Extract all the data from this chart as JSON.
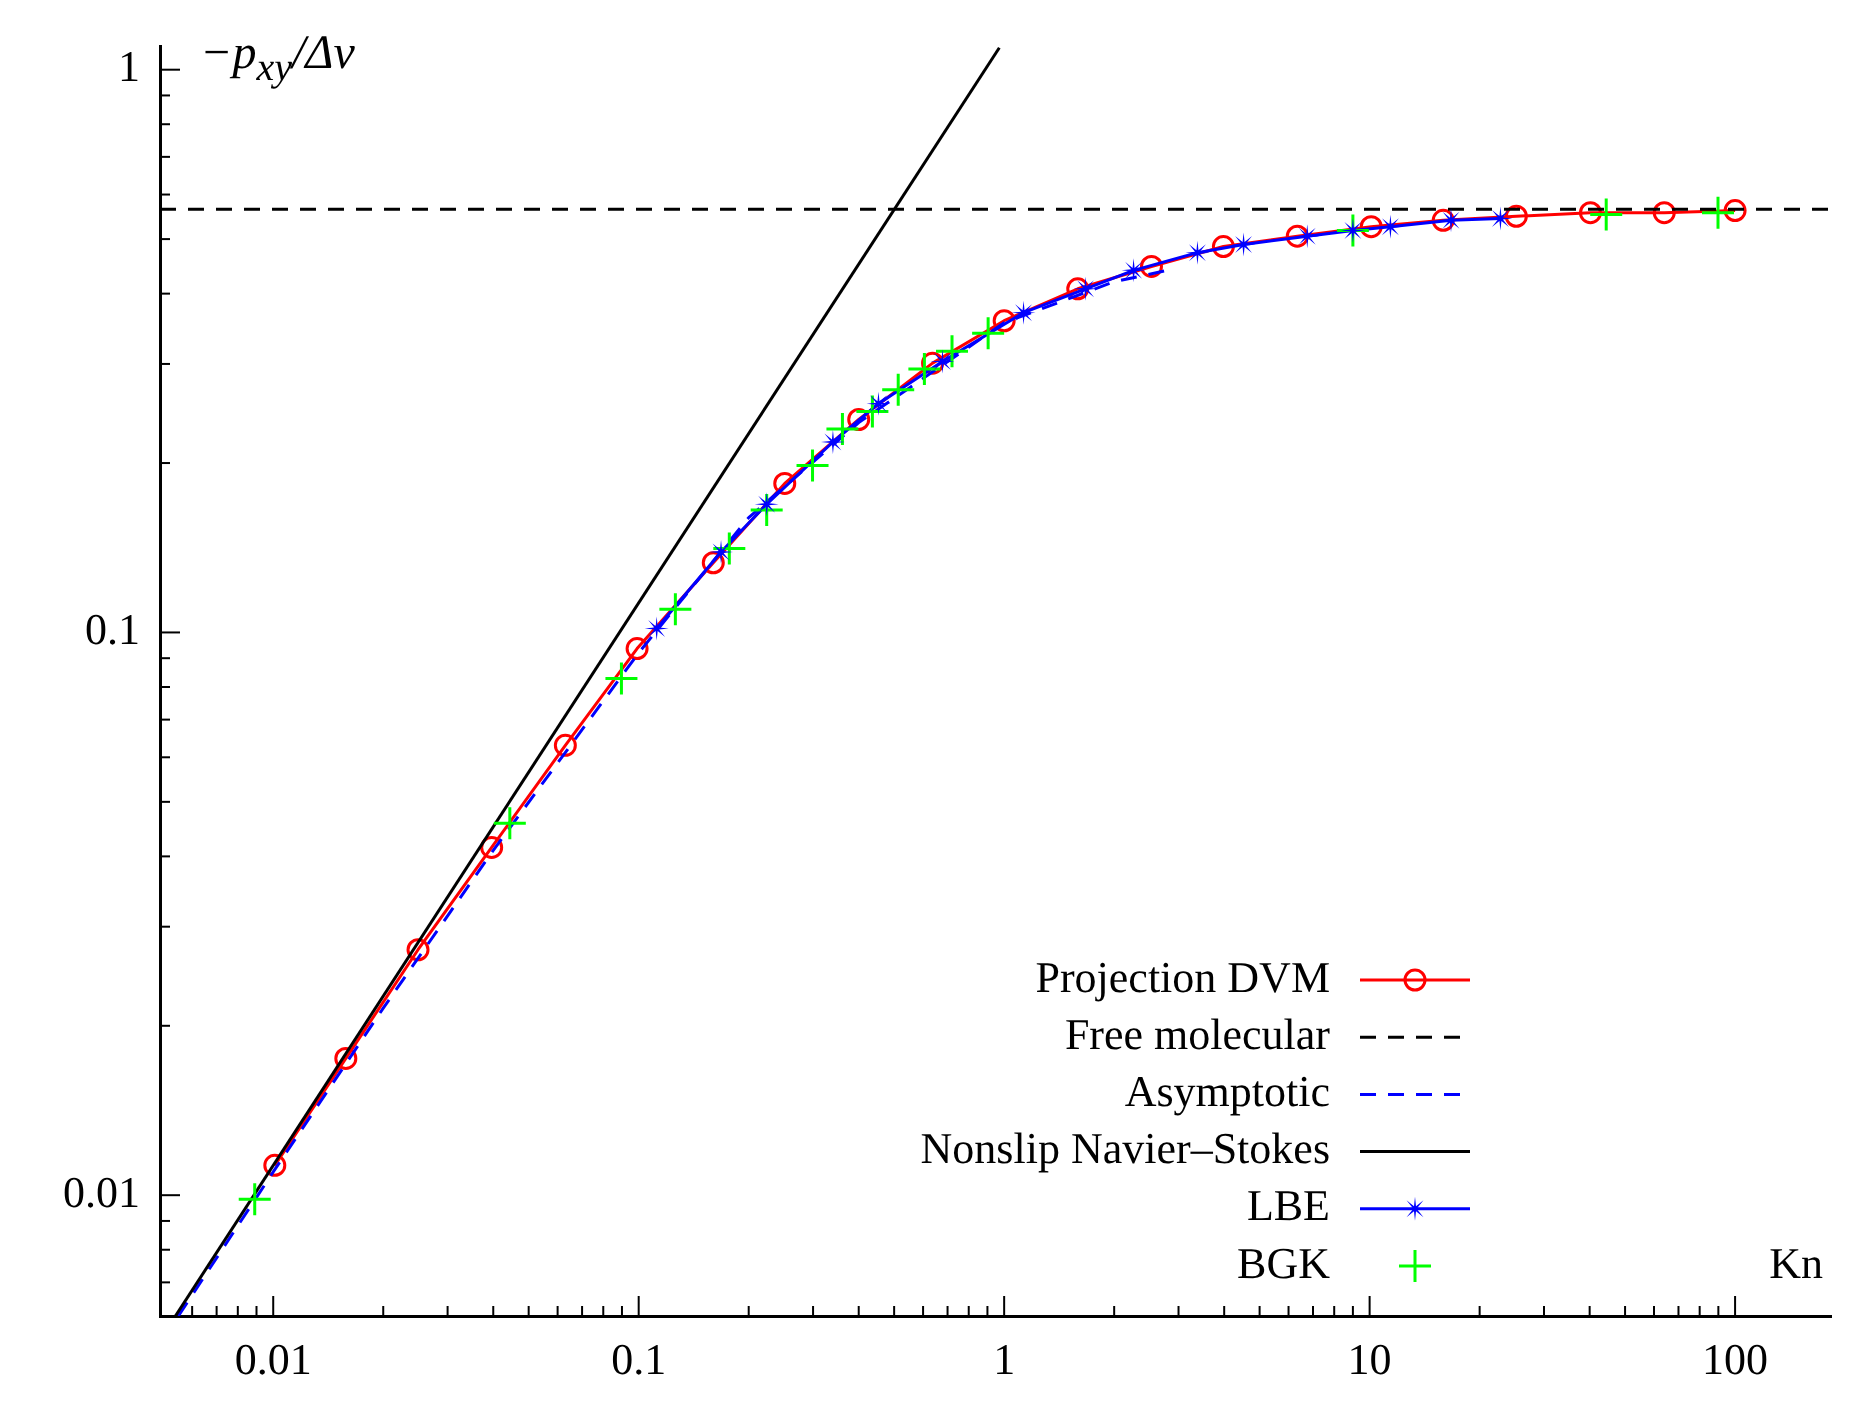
{
  "chart_data": {
    "type": "line",
    "xlabel": "Kn",
    "ylabel": "−p$_{xy}$/Δv",
    "log": "xy",
    "grid": false,
    "legend": "bottom right",
    "xlim": [
      0.0049,
      183
    ],
    "ylim": [
      0.0061,
      1.1
    ],
    "xticks": [
      {
        "value": 0.006,
        "label": null
      },
      {
        "value": 0.007,
        "label": null
      },
      {
        "value": 0.008,
        "label": null
      },
      {
        "value": 0.009,
        "label": null
      },
      0.01,
      {
        "value": 0.02,
        "label": null
      },
      {
        "value": 0.03,
        "label": null
      },
      {
        "value": 0.04,
        "label": null
      },
      {
        "value": 0.05,
        "label": null
      },
      {
        "value": 0.06,
        "label": null
      },
      {
        "value": 0.07,
        "label": null
      },
      {
        "value": 0.08,
        "label": null
      },
      {
        "value": 0.09,
        "label": null
      },
      0.1,
      {
        "value": 0.2,
        "label": null
      },
      {
        "value": 0.3,
        "label": null
      },
      {
        "value": 0.4,
        "label": null
      },
      {
        "value": 0.5,
        "label": null
      },
      {
        "value": 0.6,
        "label": null
      },
      {
        "value": 0.7,
        "label": null
      },
      {
        "value": 0.8,
        "label": null
      },
      {
        "value": 0.9,
        "label": null
      },
      1,
      {
        "value": 2,
        "label": null
      },
      {
        "value": 3,
        "label": null
      },
      {
        "value": 4,
        "label": null
      },
      {
        "value": 5,
        "label": null
      },
      {
        "value": 6,
        "label": null
      },
      {
        "value": 7,
        "label": null
      },
      {
        "value": 8,
        "label": null
      },
      {
        "value": 9,
        "label": null
      },
      10,
      {
        "value": 20,
        "label": null
      },
      {
        "value": 30,
        "label": null
      },
      {
        "value": 40,
        "label": null
      },
      {
        "value": 50,
        "label": null
      },
      {
        "value": 60,
        "label": null
      },
      {
        "value": 70,
        "label": null
      },
      {
        "value": 80,
        "label": null
      },
      {
        "value": 90,
        "label": null
      },
      100
    ],
    "yticks": [
      {
        "value": 0.007,
        "label": null
      },
      {
        "value": 0.008,
        "label": null
      },
      {
        "value": 0.009,
        "label": null
      },
      0.01,
      {
        "value": 0.02,
        "label": null
      },
      {
        "value": 0.03,
        "label": null
      },
      {
        "value": 0.04,
        "label": null
      },
      {
        "value": 0.05,
        "label": null
      },
      {
        "value": 0.06,
        "label": null
      },
      {
        "value": 0.07,
        "label": null
      },
      {
        "value": 0.08,
        "label": null
      },
      {
        "value": 0.09,
        "label": null
      },
      0.1,
      {
        "value": 0.2,
        "label": null
      },
      {
        "value": 0.3,
        "label": null
      },
      {
        "value": 0.4,
        "label": null
      },
      {
        "value": 0.5,
        "label": null
      },
      {
        "value": 0.6,
        "label": null
      },
      {
        "value": 0.7,
        "label": null
      },
      {
        "value": 0.8,
        "label": null
      },
      {
        "value": 0.9,
        "label": null
      },
      1
    ],
    "series": [
      {
        "name": "Projection DVM",
        "type": "line",
        "color": "#ff0000",
        "marker": "circle",
        "line_style": "solid",
        "x": [
          0.0101,
          0.0158,
          0.0249,
          0.0396,
          0.063,
          0.099,
          0.16,
          0.251,
          0.4,
          0.637,
          1,
          1.59,
          2.53,
          3.98,
          6.34,
          10.1,
          15.9,
          25.2,
          40.2,
          64,
          100
        ],
        "values": [
          0.0113,
          0.0175,
          0.0273,
          0.0415,
          0.063,
          0.0936,
          0.133,
          0.184,
          0.239,
          0.301,
          0.358,
          0.408,
          0.447,
          0.485,
          0.506,
          0.526,
          0.54,
          0.549,
          0.557,
          0.557,
          0.562
        ]
      },
      {
        "name": "Free molecular",
        "type": "line",
        "color": "#000000",
        "marker": "none",
        "line_style": "dashed",
        "x": [
          0.0049,
          183
        ],
        "values": [
          0.565,
          0.565
        ]
      },
      {
        "name": "Asymptotic",
        "type": "line",
        "color": "#0000ff",
        "marker": "none",
        "line_style": "dashed",
        "x": [
          0.0055,
          0.01,
          0.02,
          0.04,
          0.1,
          0.2,
          0.4,
          1,
          2,
          2.8
        ],
        "values": [
          0.0061,
          0.011,
          0.0215,
          0.041,
          0.092,
          0.16,
          0.236,
          0.355,
          0.42,
          0.44
        ]
      },
      {
        "name": "Nonslip Navier–Stokes",
        "type": "line",
        "color": "#000000",
        "marker": "none",
        "line_style": "solid",
        "x": [
          0.0054,
          0.97
        ],
        "values": [
          0.0061,
          1.094
        ]
      },
      {
        "name": "LBE",
        "type": "line",
        "color": "#0000ff",
        "marker": "star",
        "line_style": "solid",
        "x": [
          0.112,
          0.168,
          0.224,
          0.34,
          0.453,
          0.678,
          1.13,
          1.67,
          2.26,
          3.38,
          4.52,
          6.75,
          9.0,
          11.4,
          16.7,
          22.8
        ],
        "values": [
          0.1016,
          0.139,
          0.169,
          0.218,
          0.255,
          0.303,
          0.37,
          0.408,
          0.44,
          0.473,
          0.489,
          0.506,
          0.518,
          0.526,
          0.54,
          0.544
        ]
      },
      {
        "name": "BGK",
        "type": "scatter",
        "color": "#00ff00",
        "marker": "cross",
        "x": [
          0.0089,
          0.0444,
          0.0897,
          0.126,
          0.177,
          0.224,
          0.299,
          0.361,
          0.436,
          0.513,
          0.605,
          0.72,
          0.904,
          9.0,
          44.4,
          89.8
        ],
        "values": [
          0.00984,
          0.0458,
          0.0828,
          0.11,
          0.141,
          0.165,
          0.198,
          0.23,
          0.247,
          0.27,
          0.294,
          0.316,
          0.34,
          0.518,
          0.553,
          0.557
        ]
      }
    ]
  }
}
